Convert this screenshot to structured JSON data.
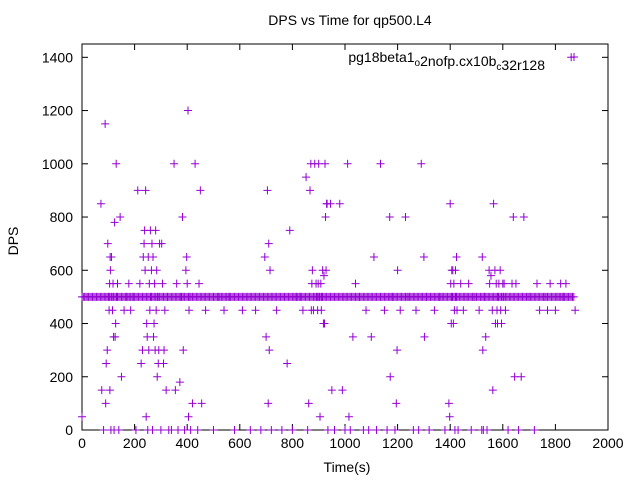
{
  "chart_data": {
    "type": "scatter",
    "title": "DPS vs Time for qp500.L4",
    "xlabel": "Time(s)",
    "ylabel": "DPS",
    "xlim": [
      0,
      2000
    ],
    "ylim": [
      0,
      1450
    ],
    "xticks": [
      0,
      200,
      400,
      600,
      800,
      1000,
      1200,
      1400,
      1600,
      1800,
      2000
    ],
    "yticks": [
      0,
      200,
      400,
      600,
      800,
      1000,
      1200,
      1400
    ],
    "xtick_labels": [
      "0",
      "200",
      "400",
      "600",
      "800",
      "1000",
      "1200",
      "1400",
      "1600",
      "1800",
      "2000"
    ],
    "ytick_labels": [
      "0",
      "200",
      "400",
      "600",
      "800",
      "1000",
      "1200",
      "1400"
    ],
    "grid": false,
    "legend_position": "top-right",
    "marker_color": "#9400d3",
    "series": [
      {
        "name": "pg18beta1_o2nofp.cx10b_c32r128",
        "name_parts": [
          {
            "text": "pg18beta1",
            "sub": false
          },
          {
            "text": "o",
            "sub": true
          },
          {
            "text": "2nofp.cx10b",
            "sub": false
          },
          {
            "text": "c",
            "sub": true
          },
          {
            "text": "32r128",
            "sub": false
          }
        ],
        "baseline": {
          "x_start": 0,
          "x_end": 1870,
          "x_step": 5,
          "y": 500
        },
        "points": [
          [
            0,
            50
          ],
          [
            72,
            850
          ],
          [
            75,
            150
          ],
          [
            82,
            0
          ],
          [
            88,
            1150
          ],
          [
            90,
            100
          ],
          [
            92,
            250
          ],
          [
            96,
            300
          ],
          [
            98,
            700
          ],
          [
            101,
            500
          ],
          [
            103,
            450
          ],
          [
            105,
            550
          ],
          [
            106,
            150
          ],
          [
            107,
            650
          ],
          [
            108,
            600
          ],
          [
            110,
            0
          ],
          [
            112,
            650
          ],
          [
            114,
            500
          ],
          [
            116,
            450
          ],
          [
            118,
            550
          ],
          [
            120,
            350
          ],
          [
            122,
            0
          ],
          [
            124,
            780
          ],
          [
            126,
            350
          ],
          [
            128,
            400
          ],
          [
            130,
            1000
          ],
          [
            133,
            500
          ],
          [
            135,
            550
          ],
          [
            140,
            0
          ],
          [
            145,
            800
          ],
          [
            150,
            200
          ],
          [
            160,
            450
          ],
          [
            170,
            500
          ],
          [
            178,
            550
          ],
          [
            185,
            450
          ],
          [
            195,
            500
          ],
          [
            205,
            0
          ],
          [
            212,
            900
          ],
          [
            220,
            550
          ],
          [
            225,
            250
          ],
          [
            230,
            300
          ],
          [
            233,
            650
          ],
          [
            236,
            700
          ],
          [
            238,
            750
          ],
          [
            240,
            600
          ],
          [
            242,
            900
          ],
          [
            244,
            50
          ],
          [
            246,
            400
          ],
          [
            248,
            350
          ],
          [
            250,
            0
          ],
          [
            252,
            650
          ],
          [
            254,
            300
          ],
          [
            256,
            550
          ],
          [
            258,
            450
          ],
          [
            260,
            750
          ],
          [
            262,
            500
          ],
          [
            264,
            600
          ],
          [
            266,
            700
          ],
          [
            268,
            0
          ],
          [
            270,
            650
          ],
          [
            272,
            350
          ],
          [
            274,
            400
          ],
          [
            276,
            550
          ],
          [
            278,
            300
          ],
          [
            280,
            750
          ],
          [
            282,
            450
          ],
          [
            284,
            600
          ],
          [
            286,
            200
          ],
          [
            288,
            500
          ],
          [
            290,
            250
          ],
          [
            292,
            300
          ],
          [
            295,
            700
          ],
          [
            300,
            0
          ],
          [
            303,
            700
          ],
          [
            306,
            550
          ],
          [
            310,
            250
          ],
          [
            312,
            300
          ],
          [
            315,
            450
          ],
          [
            320,
            150
          ],
          [
            325,
            500
          ],
          [
            330,
            0
          ],
          [
            340,
            0
          ],
          [
            350,
            1000
          ],
          [
            355,
            150
          ],
          [
            360,
            550
          ],
          [
            365,
            0
          ],
          [
            372,
            180
          ],
          [
            378,
            500
          ],
          [
            382,
            800
          ],
          [
            385,
            300
          ],
          [
            390,
            0
          ],
          [
            395,
            600
          ],
          [
            398,
            650
          ],
          [
            400,
            550
          ],
          [
            403,
            1200
          ],
          [
            405,
            50
          ],
          [
            407,
            450
          ],
          [
            410,
            500
          ],
          [
            413,
            0
          ],
          [
            420,
            100
          ],
          [
            430,
            1000
          ],
          [
            440,
            0
          ],
          [
            445,
            550
          ],
          [
            450,
            900
          ],
          [
            455,
            100
          ],
          [
            470,
            450
          ],
          [
            500,
            0
          ],
          [
            520,
            500
          ],
          [
            540,
            450
          ],
          [
            560,
            500
          ],
          [
            580,
            0
          ],
          [
            610,
            450
          ],
          [
            640,
            0
          ],
          [
            660,
            450
          ],
          [
            680,
            0
          ],
          [
            695,
            650
          ],
          [
            700,
            350
          ],
          [
            705,
            900
          ],
          [
            708,
            100
          ],
          [
            710,
            700
          ],
          [
            712,
            300
          ],
          [
            715,
            600
          ],
          [
            720,
            0
          ],
          [
            740,
            450
          ],
          [
            760,
            0
          ],
          [
            780,
            250
          ],
          [
            790,
            750
          ],
          [
            800,
            0
          ],
          [
            815,
            500
          ],
          [
            830,
            500
          ],
          [
            840,
            450
          ],
          [
            852,
            950
          ],
          [
            858,
            0
          ],
          [
            862,
            100
          ],
          [
            867,
            900
          ],
          [
            870,
            1000
          ],
          [
            872,
            450
          ],
          [
            874,
            550
          ],
          [
            876,
            600
          ],
          [
            880,
            450
          ],
          [
            885,
            1000
          ],
          [
            890,
            550
          ],
          [
            893,
            500
          ],
          [
            896,
            450
          ],
          [
            898,
            550
          ],
          [
            900,
            1000
          ],
          [
            902,
            500
          ],
          [
            905,
            50
          ],
          [
            908,
            550
          ],
          [
            910,
            450
          ],
          [
            913,
            500
          ],
          [
            915,
            600
          ],
          [
            918,
            400
          ],
          [
            920,
            580
          ],
          [
            922,
            400
          ],
          [
            924,
            1000
          ],
          [
            926,
            800
          ],
          [
            928,
            600
          ],
          [
            930,
            850
          ],
          [
            932,
            850
          ],
          [
            935,
            0
          ],
          [
            945,
            850
          ],
          [
            950,
            150
          ],
          [
            960,
            0
          ],
          [
            980,
            850
          ],
          [
            990,
            150
          ],
          [
            1000,
            0
          ],
          [
            1010,
            1000
          ],
          [
            1015,
            50
          ],
          [
            1020,
            0
          ],
          [
            1030,
            350
          ],
          [
            1040,
            550
          ],
          [
            1055,
            500
          ],
          [
            1070,
            0
          ],
          [
            1080,
            450
          ],
          [
            1090,
            0
          ],
          [
            1100,
            350
          ],
          [
            1110,
            650
          ],
          [
            1120,
            0
          ],
          [
            1135,
            1000
          ],
          [
            1150,
            450
          ],
          [
            1160,
            0
          ],
          [
            1170,
            800
          ],
          [
            1172,
            200
          ],
          [
            1180,
            500
          ],
          [
            1190,
            0
          ],
          [
            1195,
            100
          ],
          [
            1198,
            300
          ],
          [
            1200,
            600
          ],
          [
            1210,
            450
          ],
          [
            1230,
            800
          ],
          [
            1240,
            500
          ],
          [
            1260,
            0
          ],
          [
            1270,
            450
          ],
          [
            1280,
            0
          ],
          [
            1290,
            1000
          ],
          [
            1300,
            650
          ],
          [
            1302,
            350
          ],
          [
            1310,
            500
          ],
          [
            1320,
            0
          ],
          [
            1340,
            450
          ],
          [
            1360,
            500
          ],
          [
            1380,
            0
          ],
          [
            1395,
            100
          ],
          [
            1398,
            50
          ],
          [
            1400,
            850
          ],
          [
            1402,
            550
          ],
          [
            1404,
            400
          ],
          [
            1406,
            600
          ],
          [
            1408,
            500
          ],
          [
            1410,
            600
          ],
          [
            1412,
            400
          ],
          [
            1414,
            550
          ],
          [
            1416,
            450
          ],
          [
            1418,
            0
          ],
          [
            1420,
            600
          ],
          [
            1422,
            500
          ],
          [
            1424,
            650
          ],
          [
            1426,
            450
          ],
          [
            1430,
            0
          ],
          [
            1440,
            550
          ],
          [
            1450,
            450
          ],
          [
            1460,
            500
          ],
          [
            1470,
            550
          ],
          [
            1480,
            0
          ],
          [
            1490,
            500
          ],
          [
            1510,
            450
          ],
          [
            1520,
            0
          ],
          [
            1522,
            650
          ],
          [
            1524,
            300
          ],
          [
            1526,
            0
          ],
          [
            1530,
            500
          ],
          [
            1535,
            350
          ],
          [
            1540,
            0
          ],
          [
            1548,
            600
          ],
          [
            1550,
            550
          ],
          [
            1555,
            580
          ],
          [
            1560,
            450
          ],
          [
            1562,
            150
          ],
          [
            1565,
            850
          ],
          [
            1570,
            600
          ],
          [
            1572,
            400
          ],
          [
            1575,
            550
          ],
          [
            1578,
            450
          ],
          [
            1580,
            400
          ],
          [
            1582,
            500
          ],
          [
            1585,
            550
          ],
          [
            1590,
            600
          ],
          [
            1592,
            450
          ],
          [
            1595,
            400
          ],
          [
            1600,
            550
          ],
          [
            1602,
            500
          ],
          [
            1605,
            550
          ],
          [
            1610,
            450
          ],
          [
            1620,
            0
          ],
          [
            1635,
            550
          ],
          [
            1640,
            800
          ],
          [
            1645,
            200
          ],
          [
            1650,
            550
          ],
          [
            1660,
            0
          ],
          [
            1670,
            200
          ],
          [
            1680,
            800
          ],
          [
            1700,
            500
          ],
          [
            1720,
            0
          ],
          [
            1730,
            550
          ],
          [
            1740,
            450
          ],
          [
            1760,
            500
          ],
          [
            1770,
            450
          ],
          [
            1780,
            550
          ],
          [
            1800,
            450
          ],
          [
            1810,
            500
          ],
          [
            1820,
            550
          ],
          [
            1830,
            500
          ],
          [
            1840,
            550
          ],
          [
            1860,
            1400
          ],
          [
            1875,
            450
          ]
        ]
      }
    ]
  }
}
